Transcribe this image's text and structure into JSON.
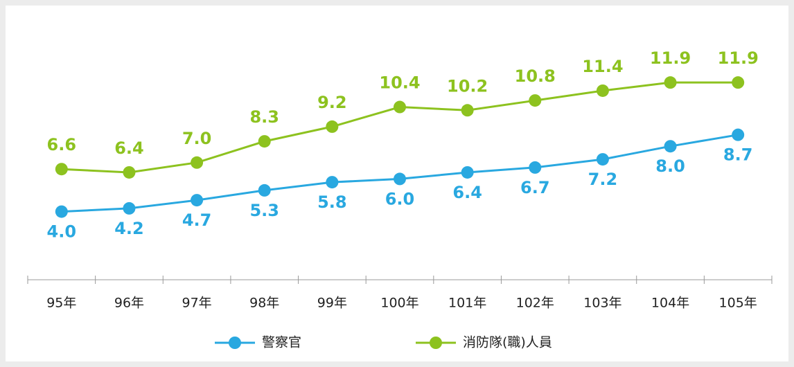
{
  "chart_data": {
    "type": "line",
    "categories": [
      "95年",
      "96年",
      "97年",
      "98年",
      "99年",
      "100年",
      "101年",
      "102年",
      "103年",
      "104年",
      "105年"
    ],
    "series": [
      {
        "name": "警察官",
        "color": "#29a8e0",
        "values": [
          4.0,
          4.2,
          4.7,
          5.3,
          5.8,
          6.0,
          6.4,
          6.7,
          7.2,
          8.0,
          8.7
        ],
        "value_labels": [
          "4.0",
          "4.2",
          "4.7",
          "5.3",
          "5.8",
          "6.0",
          "6.4",
          "6.7",
          "7.2",
          "8.0",
          "8.7"
        ]
      },
      {
        "name": "消防隊(職)人員",
        "color": "#8dc21f",
        "values": [
          6.6,
          6.4,
          7.0,
          8.3,
          9.2,
          10.4,
          10.2,
          10.8,
          11.4,
          11.9,
          11.9
        ],
        "value_labels": [
          "6.6",
          "6.4",
          "7.0",
          "8.3",
          "9.2",
          "10.4",
          "10.2",
          "10.8",
          "11.4",
          "11.9",
          "11.9"
        ]
      }
    ],
    "ylim": [
      0,
      16
    ]
  }
}
